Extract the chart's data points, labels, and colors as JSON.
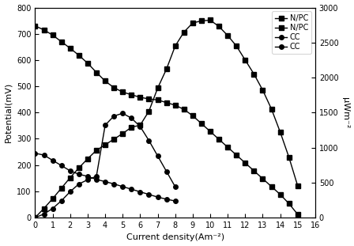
{
  "xlabel": "Current density(Am⁻²)",
  "ylabel_left": "Potential(mV)",
  "ylabel_right": "μWm⁻²",
  "xlim": [
    0,
    16
  ],
  "ylim_left": [
    0,
    800
  ],
  "ylim_right": [
    0,
    3000
  ],
  "npc_potential_x": [
    0,
    0.5,
    1,
    1.5,
    2,
    2.5,
    3,
    3.5,
    4,
    4.5,
    5,
    5.5,
    6,
    6.5,
    7,
    7.5,
    8,
    8.5,
    9,
    9.5,
    10,
    10.5,
    11,
    11.5,
    12,
    12.5,
    13,
    13.5,
    14,
    14.5,
    15
  ],
  "npc_potential_y": [
    730,
    715,
    695,
    670,
    645,
    618,
    588,
    553,
    520,
    495,
    478,
    468,
    458,
    452,
    448,
    438,
    428,
    412,
    388,
    358,
    328,
    298,
    268,
    238,
    208,
    178,
    148,
    118,
    88,
    53,
    12
  ],
  "npc_power_x": [
    0,
    0.5,
    1,
    1.5,
    2,
    2.5,
    3,
    3.5,
    4,
    4.5,
    5,
    5.5,
    6,
    6.5,
    7,
    7.5,
    8,
    8.5,
    9,
    9.5,
    10,
    10.5,
    11,
    11.5,
    12,
    12.5,
    13,
    13.5,
    14,
    14.5,
    15
  ],
  "npc_power_y": [
    0,
    130,
    270,
    420,
    570,
    710,
    840,
    960,
    1040,
    1120,
    1200,
    1290,
    1320,
    1520,
    1850,
    2120,
    2450,
    2650,
    2780,
    2810,
    2820,
    2730,
    2600,
    2450,
    2250,
    2050,
    1820,
    1550,
    1220,
    860,
    450
  ],
  "cc_potential_x": [
    0,
    0.5,
    1,
    1.5,
    2,
    2.5,
    3,
    3.5,
    4,
    4.5,
    5,
    5.5,
    6,
    6.5,
    7,
    7.5,
    8
  ],
  "cc_potential_y": [
    245,
    238,
    218,
    198,
    178,
    165,
    157,
    145,
    137,
    128,
    118,
    108,
    98,
    88,
    78,
    70,
    63
  ],
  "cc_power_x": [
    0,
    0.5,
    1,
    1.5,
    2,
    2.5,
    3,
    3.5,
    4,
    4.5,
    5,
    5.5,
    6,
    6.5,
    7,
    7.5,
    8
  ],
  "cc_power_y": [
    0,
    50,
    130,
    240,
    370,
    480,
    540,
    590,
    1320,
    1450,
    1490,
    1420,
    1300,
    1100,
    880,
    660,
    440
  ],
  "color_all": "#000000",
  "marker_square": "s",
  "marker_circle": "o",
  "markersize": 4,
  "linewidth": 1.0,
  "legend_labels": [
    "N/PC",
    "N/PC",
    "CC",
    "CC"
  ],
  "xticks": [
    0,
    1,
    2,
    3,
    4,
    5,
    6,
    7,
    8,
    9,
    10,
    11,
    12,
    13,
    14,
    15,
    16
  ],
  "yticks_left": [
    0,
    100,
    200,
    300,
    400,
    500,
    600,
    700,
    800
  ],
  "yticks_right": [
    0,
    500,
    1000,
    1500,
    2000,
    2500,
    3000
  ]
}
